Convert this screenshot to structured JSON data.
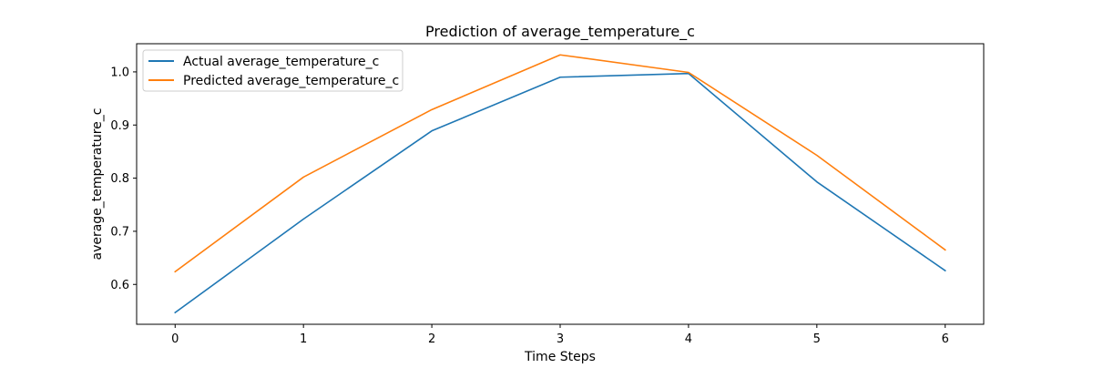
{
  "chart_data": {
    "type": "line",
    "title": "Prediction of average_temperature_c",
    "xlabel": "Time Steps",
    "ylabel": "average_temperature_c",
    "x": [
      0,
      1,
      2,
      3,
      4,
      5,
      6
    ],
    "x_ticks": [
      "0",
      "1",
      "2",
      "3",
      "4",
      "5",
      "6"
    ],
    "y_ticks": [
      "0.6",
      "0.7",
      "0.8",
      "0.9",
      "1.0"
    ],
    "xlim": [
      -0.3,
      6.3
    ],
    "ylim": [
      0.525,
      1.053
    ],
    "grid": false,
    "legend_position": "top-left",
    "series": [
      {
        "name": "Actual average_temperature_c",
        "color": "#1f77b4",
        "values": [
          0.547,
          0.723,
          0.889,
          0.99,
          0.997,
          0.793,
          0.626
        ]
      },
      {
        "name": "Predicted average_temperature_c",
        "color": "#ff7f0e",
        "values": [
          0.624,
          0.802,
          0.929,
          1.032,
          0.999,
          0.843,
          0.665
        ]
      }
    ]
  }
}
